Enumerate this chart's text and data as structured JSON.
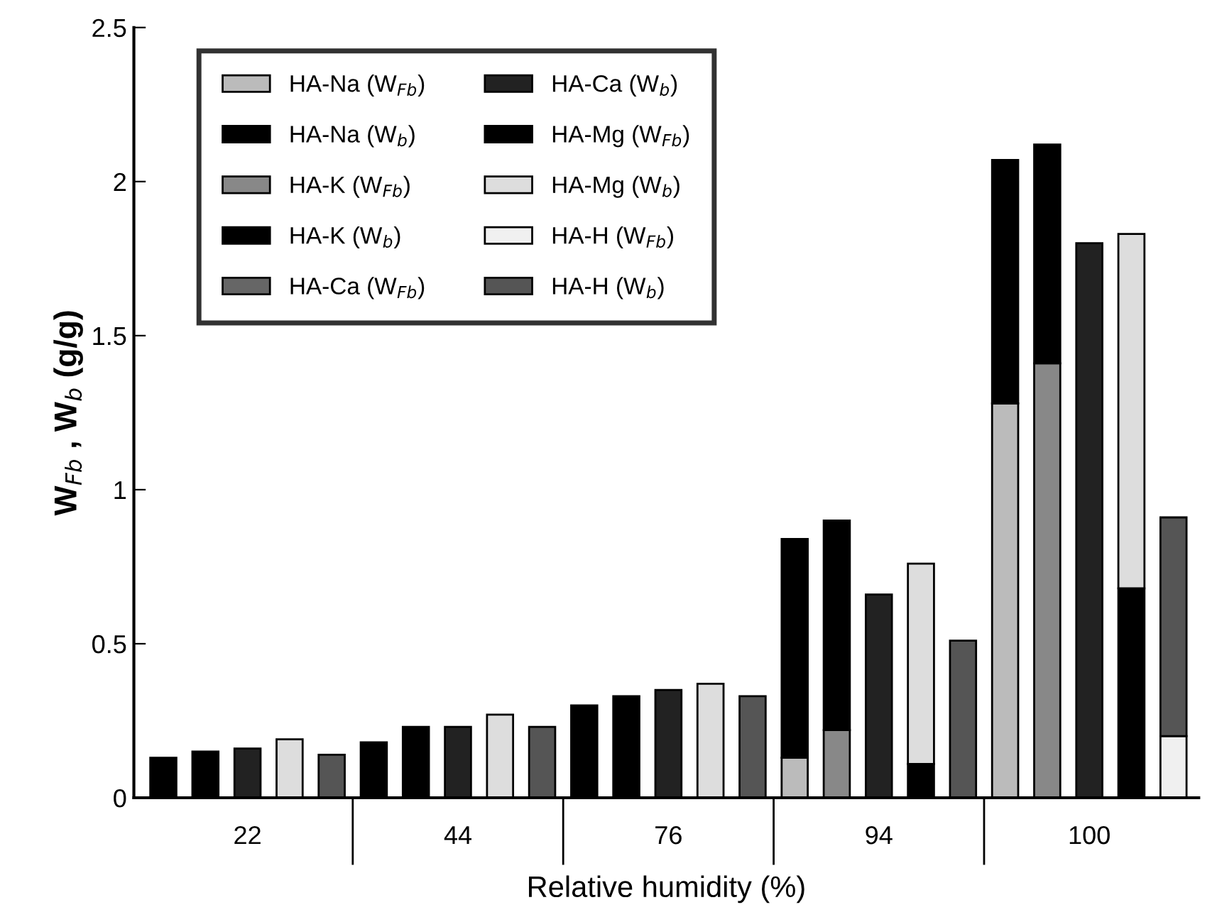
{
  "chart_data": {
    "type": "bar",
    "stacked": true,
    "xlabel": "Relative humidity (%)",
    "ylabel": "W$_{Fb}$ , W$_{b}$ (g/g)",
    "categories": [
      null,
      null,
      "22",
      null,
      null,
      null,
      null,
      "44",
      null,
      null,
      null,
      null,
      "76",
      null,
      null,
      null,
      null,
      "94",
      null,
      null,
      null,
      null,
      "100",
      null,
      null
    ],
    "ylim": [
      0,
      2.5
    ],
    "yticks": [
      0,
      0.5,
      1,
      1.5,
      2,
      2.5
    ],
    "grid": false,
    "legend": "top left",
    "series": [
      {
        "name": "HA-Na (W$_{Fb}$)",
        "color": "#bbbbbb",
        "values": [
          null,
          null,
          null,
          null,
          null,
          null,
          null,
          null,
          null,
          null,
          null,
          null,
          null,
          null,
          null,
          0.13,
          null,
          null,
          null,
          null,
          1.28,
          null,
          null,
          null,
          null
        ]
      },
      {
        "name": "HA-Na (W$_{b}$)",
        "color": "#000000",
        "values": [
          0.13,
          null,
          null,
          null,
          null,
          0.18,
          null,
          null,
          null,
          null,
          0.3,
          null,
          null,
          null,
          null,
          0.71,
          null,
          null,
          null,
          null,
          0.79,
          null,
          null,
          null,
          null
        ]
      },
      {
        "name": "HA-K (W$_{Fb}$)",
        "color": "#888888",
        "values": [
          null,
          null,
          null,
          null,
          null,
          null,
          null,
          null,
          null,
          null,
          null,
          null,
          null,
          null,
          null,
          null,
          0.22,
          null,
          null,
          null,
          null,
          1.41,
          null,
          null,
          null
        ]
      },
      {
        "name": "HA-K (W$_{b}$)",
        "color": "#000000",
        "values": [
          null,
          0.15,
          null,
          null,
          null,
          null,
          0.23,
          null,
          null,
          null,
          null,
          0.33,
          null,
          null,
          null,
          null,
          0.68,
          null,
          null,
          null,
          null,
          0.71,
          null,
          null,
          null
        ]
      },
      {
        "name": "HA-Ca (W$_{Fb}$)",
        "color": "#666666",
        "values": [
          null,
          null,
          null,
          null,
          null,
          null,
          null,
          null,
          null,
          null,
          null,
          null,
          null,
          null,
          null,
          null,
          null,
          null,
          null,
          null,
          null,
          null,
          null,
          null,
          null
        ]
      },
      {
        "name": "HA-Ca (W$_{b}$)",
        "color": "#222222",
        "values": [
          null,
          null,
          0.16,
          null,
          null,
          null,
          null,
          0.23,
          null,
          null,
          null,
          null,
          0.35,
          null,
          null,
          null,
          null,
          0.66,
          null,
          null,
          null,
          null,
          1.8,
          null,
          null
        ]
      },
      {
        "name": "HA-Mg (W$_{Fb}$)",
        "color": "#000000",
        "values": [
          null,
          null,
          null,
          null,
          null,
          null,
          null,
          null,
          null,
          null,
          null,
          null,
          null,
          null,
          null,
          null,
          null,
          null,
          0.11,
          null,
          null,
          null,
          null,
          0.68,
          null
        ]
      },
      {
        "name": "HA-Mg (W$_{b}$)",
        "color": "#dddddd",
        "values": [
          null,
          null,
          null,
          0.19,
          null,
          null,
          null,
          null,
          0.27,
          null,
          null,
          null,
          null,
          0.37,
          null,
          null,
          null,
          null,
          0.65,
          null,
          null,
          null,
          null,
          1.15,
          null
        ]
      },
      {
        "name": "HA-H (W$_{Fb}$)",
        "color": "#f0f0f0",
        "values": [
          null,
          null,
          null,
          null,
          null,
          null,
          null,
          null,
          null,
          null,
          null,
          null,
          null,
          null,
          null,
          null,
          null,
          null,
          null,
          null,
          null,
          null,
          null,
          null,
          0.2
        ]
      },
      {
        "name": "HA-H (W$_{b}$)",
        "color": "#555555",
        "values": [
          null,
          null,
          null,
          null,
          0.14,
          null,
          null,
          null,
          null,
          0.23,
          null,
          null,
          null,
          null,
          0.33,
          null,
          null,
          null,
          null,
          0.51,
          null,
          null,
          null,
          null,
          0.71
        ]
      }
    ]
  }
}
